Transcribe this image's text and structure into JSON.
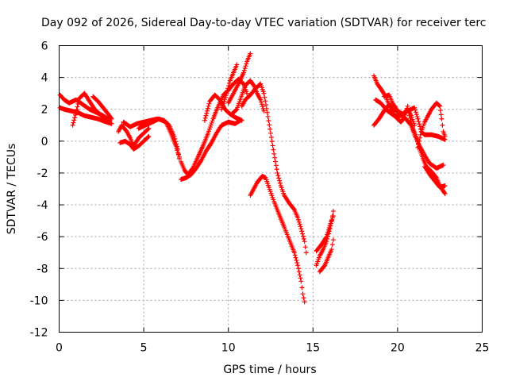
{
  "chart_data": {
    "type": "scatter",
    "title": "Day 092 of 2026, Sidereal Day-to-day VTEC variation (SDTVAR) for receiver terc",
    "xlabel": "GPS time / hours",
    "ylabel": "SDTVAR / TECUs",
    "xlim": [
      0,
      25
    ],
    "ylim": [
      -12,
      6
    ],
    "xticks": [
      "0",
      "5",
      "10",
      "15",
      "20",
      "25"
    ],
    "yticks": [
      "-12",
      "-10",
      "-8",
      "-6",
      "-4",
      "-2",
      "0",
      "2",
      "4",
      "6"
    ],
    "grid": true,
    "marker": "plus",
    "color": "#ff0000",
    "series": [
      {
        "values": [
          [
            0.05,
            2.9
          ],
          [
            0.3,
            2.6
          ],
          [
            0.6,
            2.4
          ],
          [
            1.0,
            2.6
          ],
          [
            1.4,
            2.3
          ],
          [
            1.8,
            2.0
          ],
          [
            2.2,
            1.8
          ],
          [
            2.6,
            1.6
          ],
          [
            3.0,
            1.3
          ]
        ]
      },
      {
        "values": [
          [
            0.05,
            2.1
          ],
          [
            0.3,
            2.0
          ],
          [
            0.7,
            1.9
          ],
          [
            1.1,
            1.8
          ],
          [
            1.5,
            1.6
          ],
          [
            1.9,
            1.5
          ],
          [
            2.3,
            1.4
          ],
          [
            2.8,
            1.2
          ],
          [
            3.1,
            1.1
          ]
        ]
      },
      {
        "values": [
          [
            0.8,
            1.0
          ],
          [
            1.0,
            1.8
          ],
          [
            1.2,
            2.7
          ],
          [
            1.5,
            3.0
          ],
          [
            1.8,
            2.5
          ],
          [
            2.1,
            2.0
          ],
          [
            2.5,
            1.6
          ],
          [
            2.9,
            1.3
          ]
        ]
      },
      {
        "values": [
          [
            2.0,
            2.8
          ],
          [
            2.3,
            2.5
          ],
          [
            2.6,
            2.1
          ],
          [
            2.9,
            1.7
          ],
          [
            3.1,
            1.4
          ]
        ]
      },
      {
        "values": [
          [
            3.5,
            0.6
          ],
          [
            3.7,
            1.0
          ],
          [
            4.0,
            0.6
          ],
          [
            4.2,
            0.2
          ],
          [
            4.4,
            -0.3
          ],
          [
            4.7,
            0.2
          ],
          [
            5.0,
            0.5
          ],
          [
            5.3,
            0.8
          ]
        ]
      },
      {
        "values": [
          [
            3.6,
            -0.1
          ],
          [
            3.9,
            0.0
          ],
          [
            4.2,
            -0.2
          ],
          [
            4.4,
            -0.5
          ],
          [
            4.7,
            -0.3
          ],
          [
            5.0,
            0.0
          ],
          [
            5.3,
            0.3
          ]
        ]
      },
      {
        "values": [
          [
            3.8,
            1.2
          ],
          [
            4.2,
            0.9
          ],
          [
            4.6,
            1.1
          ],
          [
            5.0,
            1.2
          ],
          [
            5.4,
            1.3
          ],
          [
            5.8,
            1.4
          ],
          [
            6.2,
            1.3
          ],
          [
            6.5,
            1.0
          ],
          [
            6.8,
            0.3
          ],
          [
            7.0,
            -0.5
          ],
          [
            7.1,
            -1.1
          ]
        ]
      },
      {
        "values": [
          [
            4.7,
            0.8
          ],
          [
            5.1,
            1.0
          ],
          [
            5.5,
            1.2
          ],
          [
            5.9,
            1.4
          ],
          [
            6.3,
            1.2
          ],
          [
            6.6,
            0.5
          ],
          [
            6.9,
            -0.3
          ],
          [
            7.1,
            -1.0
          ]
        ]
      },
      {
        "values": [
          [
            7.2,
            -2.4
          ],
          [
            7.5,
            -2.3
          ],
          [
            7.8,
            -2.1
          ],
          [
            8.1,
            -1.7
          ],
          [
            8.4,
            -1.2
          ],
          [
            8.7,
            -0.6
          ],
          [
            9.0,
            -0.1
          ],
          [
            9.3,
            0.5
          ],
          [
            9.6,
            1.0
          ],
          [
            10.0,
            1.2
          ],
          [
            10.4,
            1.1
          ],
          [
            10.7,
            1.3
          ]
        ]
      },
      {
        "values": [
          [
            7.2,
            -1.3
          ],
          [
            7.4,
            -1.8
          ],
          [
            7.6,
            -2.1
          ],
          [
            7.9,
            -1.7
          ],
          [
            8.2,
            -1.0
          ],
          [
            8.5,
            -0.3
          ],
          [
            8.8,
            0.5
          ],
          [
            9.1,
            1.4
          ],
          [
            9.4,
            2.2
          ],
          [
            9.7,
            2.9
          ],
          [
            10.0,
            3.2
          ],
          [
            10.3,
            3.6
          ],
          [
            10.6,
            3.9
          ],
          [
            10.9,
            3.6
          ],
          [
            11.1,
            3.0
          ]
        ]
      },
      {
        "values": [
          [
            8.6,
            1.3
          ],
          [
            8.9,
            2.5
          ],
          [
            9.2,
            2.9
          ],
          [
            9.5,
            2.6
          ],
          [
            9.8,
            2.0
          ],
          [
            10.1,
            1.7
          ],
          [
            10.4,
            1.5
          ],
          [
            10.8,
            1.3
          ]
        ]
      },
      {
        "values": [
          [
            9.6,
            2.0
          ],
          [
            9.9,
            3.0
          ],
          [
            10.1,
            3.8
          ],
          [
            10.3,
            4.3
          ],
          [
            10.5,
            4.8
          ]
        ]
      },
      {
        "values": [
          [
            10.0,
            2.4
          ],
          [
            10.3,
            3.0
          ],
          [
            10.6,
            3.6
          ],
          [
            10.9,
            4.3
          ],
          [
            11.1,
            5.0
          ],
          [
            11.3,
            5.5
          ]
        ]
      },
      {
        "values": [
          [
            10.2,
            1.7
          ],
          [
            10.5,
            2.0
          ],
          [
            10.7,
            2.6
          ],
          [
            11.0,
            3.5
          ],
          [
            11.3,
            3.8
          ],
          [
            11.5,
            3.5
          ],
          [
            11.7,
            3.0
          ],
          [
            11.9,
            2.6
          ],
          [
            12.1,
            1.9
          ]
        ]
      },
      {
        "values": [
          [
            10.8,
            2.2
          ],
          [
            11.0,
            2.6
          ],
          [
            11.3,
            2.9
          ],
          [
            11.6,
            3.3
          ],
          [
            11.9,
            3.6
          ],
          [
            12.1,
            3.0
          ],
          [
            12.3,
            1.8
          ],
          [
            12.5,
            0.5
          ],
          [
            12.7,
            -0.8
          ],
          [
            12.9,
            -2.0
          ],
          [
            13.1,
            -2.8
          ],
          [
            13.3,
            -3.4
          ],
          [
            13.6,
            -3.9
          ],
          [
            13.9,
            -4.3
          ],
          [
            14.1,
            -4.8
          ],
          [
            14.3,
            -5.5
          ],
          [
            14.5,
            -6.3
          ],
          [
            14.6,
            -7.0
          ]
        ]
      },
      {
        "values": [
          [
            11.3,
            -3.4
          ],
          [
            11.5,
            -3.0
          ],
          [
            11.7,
            -2.6
          ],
          [
            12.0,
            -2.2
          ],
          [
            12.2,
            -2.3
          ],
          [
            12.4,
            -2.9
          ],
          [
            12.7,
            -3.8
          ],
          [
            13.0,
            -4.6
          ],
          [
            13.3,
            -5.4
          ],
          [
            13.6,
            -6.2
          ],
          [
            13.9,
            -7.0
          ],
          [
            14.1,
            -7.8
          ],
          [
            14.3,
            -8.8
          ],
          [
            14.4,
            -9.6
          ],
          [
            14.5,
            -10.1
          ]
        ]
      },
      {
        "values": [
          [
            15.2,
            -7.8
          ],
          [
            15.4,
            -7.2
          ],
          [
            15.6,
            -6.8
          ],
          [
            15.8,
            -6.3
          ],
          [
            16.0,
            -5.5
          ],
          [
            16.1,
            -5.0
          ],
          [
            16.2,
            -4.4
          ]
        ]
      },
      {
        "values": [
          [
            15.2,
            -6.9
          ],
          [
            15.5,
            -6.5
          ],
          [
            15.8,
            -6.0
          ],
          [
            16.0,
            -5.3
          ],
          [
            16.2,
            -4.7
          ]
        ]
      },
      {
        "values": [
          [
            15.4,
            -8.2
          ],
          [
            15.7,
            -7.8
          ],
          [
            15.9,
            -7.3
          ],
          [
            16.1,
            -6.8
          ],
          [
            16.2,
            -6.2
          ]
        ]
      },
      {
        "values": [
          [
            18.6,
            4.1
          ],
          [
            18.8,
            3.6
          ],
          [
            19.0,
            3.3
          ],
          [
            19.3,
            2.8
          ],
          [
            19.6,
            2.0
          ],
          [
            19.9,
            1.5
          ],
          [
            20.2,
            1.2
          ],
          [
            20.4,
            1.5
          ],
          [
            20.6,
            2.2
          ],
          [
            20.7,
            1.6
          ],
          [
            20.9,
            0.8
          ],
          [
            21.1,
            0.3
          ],
          [
            21.3,
            -0.5
          ],
          [
            21.5,
            -1.1
          ],
          [
            21.7,
            -1.6
          ],
          [
            22.0,
            -1.9
          ],
          [
            22.3,
            -2.3
          ],
          [
            22.5,
            -2.8
          ],
          [
            22.8,
            -3.3
          ]
        ]
      },
      {
        "values": [
          [
            18.6,
            1.0
          ],
          [
            18.9,
            1.4
          ],
          [
            19.2,
            1.9
          ],
          [
            19.5,
            2.3
          ],
          [
            19.8,
            2.0
          ],
          [
            20.1,
            1.8
          ],
          [
            20.4,
            1.5
          ],
          [
            20.8,
            1.0
          ],
          [
            21.0,
            0.4
          ],
          [
            21.3,
            -0.3
          ],
          [
            21.6,
            -0.9
          ],
          [
            21.9,
            -1.4
          ],
          [
            22.3,
            -1.7
          ],
          [
            22.7,
            -1.5
          ]
        ]
      },
      {
        "values": [
          [
            18.7,
            2.6
          ],
          [
            19.0,
            2.4
          ],
          [
            19.4,
            1.9
          ],
          [
            19.8,
            1.6
          ],
          [
            20.2,
            1.6
          ],
          [
            20.6,
            1.9
          ],
          [
            21.0,
            2.1
          ],
          [
            21.2,
            1.4
          ],
          [
            21.4,
            0.6
          ],
          [
            21.6,
            0.4
          ],
          [
            22.0,
            0.4
          ],
          [
            22.4,
            0.3
          ],
          [
            22.8,
            0.1
          ]
        ]
      },
      {
        "values": [
          [
            21.2,
            -0.4
          ],
          [
            21.4,
            0.6
          ],
          [
            21.6,
            1.2
          ],
          [
            21.8,
            1.6
          ],
          [
            22.0,
            2.0
          ],
          [
            22.3,
            2.4
          ],
          [
            22.5,
            2.2
          ],
          [
            22.6,
            1.4
          ],
          [
            22.7,
            0.6
          ],
          [
            22.8,
            0.3
          ]
        ]
      },
      {
        "values": [
          [
            21.6,
            -1.6
          ],
          [
            21.9,
            -2.1
          ],
          [
            22.2,
            -2.5
          ],
          [
            22.5,
            -2.9
          ],
          [
            22.8,
            -2.8
          ]
        ]
      },
      {
        "values": [
          [
            19.2,
            2.8
          ],
          [
            19.5,
            2.9
          ],
          [
            19.7,
            2.4
          ],
          [
            20.0,
            1.9
          ],
          [
            20.3,
            1.7
          ],
          [
            20.6,
            2.0
          ],
          [
            20.8,
            1.6
          ],
          [
            21.0,
            1.0
          ]
        ]
      }
    ]
  }
}
